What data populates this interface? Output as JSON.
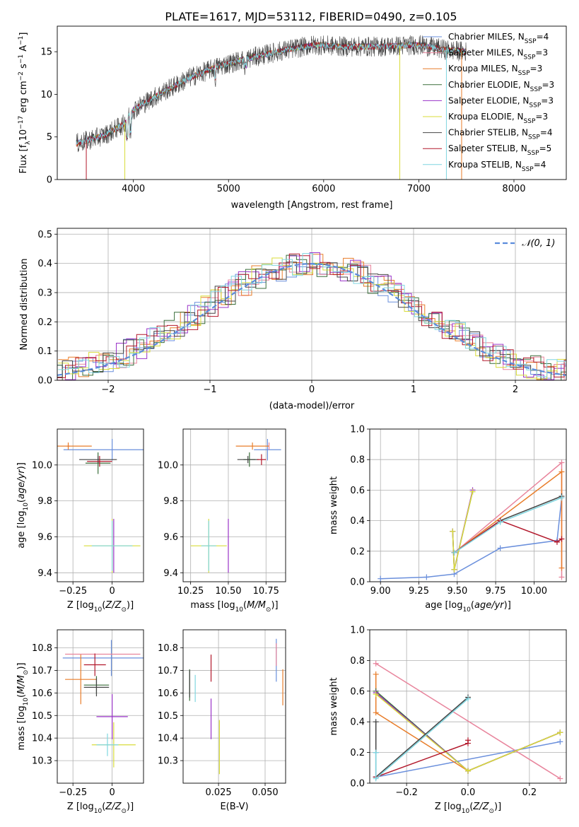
{
  "figure": {
    "title": "PLATE=1617, MJD=53112, FIBERID=0490, z=0.105"
  },
  "legend_labels": [
    {
      "main": "Chabrier MILES, N",
      "sub": "SSP",
      "tail": "=4"
    },
    {
      "main": "Salpeter MILES, N",
      "sub": "SSP",
      "tail": "=3"
    },
    {
      "main": "Kroupa MILES, N",
      "sub": "SSP",
      "tail": "=3"
    },
    {
      "main": "Chabrier ELODIE, N",
      "sub": "SSP",
      "tail": "=3"
    },
    {
      "main": "Salpeter ELODIE, N",
      "sub": "SSP",
      "tail": "=3"
    },
    {
      "main": "Kroupa ELODIE, N",
      "sub": "SSP",
      "tail": "=3"
    },
    {
      "main": "Chabrier STELIB, N",
      "sub": "SSP",
      "tail": "=4"
    },
    {
      "main": "Salpeter STELIB, N",
      "sub": "SSP",
      "tail": "=5"
    },
    {
      "main": "Kroupa STELIB, N",
      "sub": "SSP",
      "tail": "=4"
    }
  ],
  "colors": {
    "Chabrier MILES": "#6a8fdc",
    "Salpeter MILES": "#e8849c",
    "Kroupa MILES": "#e87d2a",
    "Chabrier ELODIE": "#3a6e3a",
    "Salpeter ELODIE": "#9a33c8",
    "Kroupa ELODIE": "#d8dc3a",
    "Chabrier STELIB": "#444444",
    "Salpeter STELIB": "#b2182b",
    "Kroupa STELIB": "#7fd6e0",
    "gaussian": "#5b8cdc"
  },
  "chart_data": [
    {
      "id": "spectrum",
      "type": "line",
      "xlabel": "wavelength [Angstrom, rest frame]",
      "ylabel": "Flux [f_λ 10^-17 erg cm^-2 s^-1 A^-1]",
      "xlim": [
        3200,
        8550
      ],
      "ylim": [
        0,
        18
      ],
      "xticks": [
        4000,
        5000,
        6000,
        7000,
        8000
      ],
      "yticks": [
        0,
        5,
        10,
        15
      ],
      "continuum_points": [
        [
          3400,
          4.2
        ],
        [
          3700,
          5.2
        ],
        [
          3900,
          6.5
        ],
        [
          4000,
          8.2
        ],
        [
          4300,
          10.2
        ],
        [
          4600,
          12.0
        ],
        [
          4900,
          13.3
        ],
        [
          5200,
          14.2
        ],
        [
          5600,
          15.2
        ],
        [
          5900,
          15.8
        ],
        [
          6200,
          15.6
        ],
        [
          6600,
          15.6
        ],
        [
          7000,
          15.8
        ],
        [
          7300,
          15.2
        ],
        [
          7500,
          15.0
        ]
      ],
      "grid": false
    },
    {
      "id": "residual-histogram",
      "type": "histogram",
      "xlabel": "(data-model)/error",
      "ylabel": "Normed distribution",
      "xlim": [
        -2.5,
        2.5
      ],
      "ylim": [
        0,
        0.52
      ],
      "xticks": [
        -2,
        -1,
        0,
        1,
        2
      ],
      "yticks": [
        0.0,
        0.1,
        0.2,
        0.3,
        0.4,
        0.5
      ],
      "bin_width": 0.1,
      "gaussian_legend": "𝒩(0, 1)",
      "grid": true
    },
    {
      "id": "age-vs-Z",
      "type": "scatter",
      "xlabel": "Z [log10(Z/Z⊙)]",
      "ylabel": "age [log10(age/yr)]",
      "xlim": [
        -0.35,
        0.2
      ],
      "ylim": [
        9.35,
        10.2
      ],
      "xticks": [
        -0.25,
        0.0
      ],
      "yticks": [
        9.4,
        9.6,
        9.8,
        10.0
      ],
      "points": [
        {
          "series": "Chabrier MILES",
          "x": 0.0,
          "y": 10.085,
          "xerr": 0.31,
          "yerr": 0.06
        },
        {
          "series": "Salpeter MILES",
          "x": -0.28,
          "y": 10.105,
          "xerr": 0.01,
          "yerr": 0.01
        },
        {
          "series": "Kroupa MILES",
          "x": -0.28,
          "y": 10.105,
          "xerr": 0.15,
          "yerr": 0.02
        },
        {
          "series": "Chabrier ELODIE",
          "x": -0.09,
          "y": 10.01,
          "xerr": 0.08,
          "yerr": 0.06
        },
        {
          "series": "Salpeter ELODIE",
          "x": 0.01,
          "y": 9.55,
          "xerr": 0.0,
          "yerr": 0.15
        },
        {
          "series": "Kroupa ELODIE",
          "x": 0.0,
          "y": 9.55,
          "xerr": 0.18,
          "yerr": 0.15
        },
        {
          "series": "Chabrier STELIB",
          "x": -0.09,
          "y": 10.03,
          "xerr": 0.12,
          "yerr": 0.02
        },
        {
          "series": "Salpeter STELIB",
          "x": -0.08,
          "y": 10.02,
          "xerr": 0.08,
          "yerr": 0.03
        },
        {
          "series": "Kroupa STELIB",
          "x": 0.0,
          "y": 9.55,
          "xerr": 0.13,
          "yerr": 0.14
        }
      ],
      "grid": true
    },
    {
      "id": "age-vs-mass",
      "type": "scatter",
      "xlabel": "mass [log10(M/M⊙)]",
      "ylabel": "",
      "xlim": [
        10.2,
        10.88
      ],
      "ylim": [
        9.35,
        10.2
      ],
      "xticks": [
        10.25,
        10.5,
        10.75
      ],
      "yticks": [
        9.4,
        9.6,
        9.8,
        10.0
      ],
      "points": [
        {
          "series": "Chabrier MILES",
          "x": 10.76,
          "y": 10.085,
          "xerr": 0.09,
          "yerr": 0.06
        },
        {
          "series": "Salpeter MILES",
          "x": 10.77,
          "y": 10.105,
          "xerr": 0.0,
          "yerr": 0.02
        },
        {
          "series": "Kroupa MILES",
          "x": 10.66,
          "y": 10.105,
          "xerr": 0.11,
          "yerr": 0.02
        },
        {
          "series": "Chabrier ELODIE",
          "x": 10.64,
          "y": 10.03,
          "xerr": 0.04,
          "yerr": 0.04
        },
        {
          "series": "Salpeter ELODIE",
          "x": 10.5,
          "y": 9.55,
          "xerr": 0.0,
          "yerr": 0.15
        },
        {
          "series": "Kroupa ELODIE",
          "x": 10.37,
          "y": 9.55,
          "xerr": 0.12,
          "yerr": 0.15
        },
        {
          "series": "Chabrier STELIB",
          "x": 10.63,
          "y": 10.03,
          "xerr": 0.07,
          "yerr": 0.02
        },
        {
          "series": "Salpeter STELIB",
          "x": 10.72,
          "y": 10.03,
          "xerr": 0.03,
          "yerr": 0.03
        },
        {
          "series": "Kroupa STELIB",
          "x": 10.37,
          "y": 9.55,
          "xerr": 0.05,
          "yerr": 0.14
        }
      ],
      "grid": true
    },
    {
      "id": "massweight-vs-age",
      "type": "line",
      "xlabel": "age [log10(age/yr)]",
      "ylabel": "mass weight",
      "xlim": [
        8.93,
        10.21
      ],
      "ylim": [
        0,
        1.0
      ],
      "xticks": [
        9.0,
        9.25,
        9.5,
        9.75,
        10.0
      ],
      "yticks": [
        0.0,
        0.2,
        0.4,
        0.6,
        0.8,
        1.0
      ],
      "series": [
        {
          "name": "Chabrier MILES",
          "x": [
            9.0,
            9.3,
            9.48,
            9.78,
            10.15,
            10.18
          ],
          "y": [
            0.02,
            0.03,
            0.05,
            0.22,
            0.27,
            0.55
          ]
        },
        {
          "name": "Salpeter MILES",
          "x": [
            9.48,
            10.18,
            10.18
          ],
          "y": [
            0.19,
            0.78,
            0.03
          ]
        },
        {
          "name": "Kroupa MILES",
          "x": [
            9.48,
            10.18,
            10.18
          ],
          "y": [
            0.19,
            0.72,
            0.09
          ]
        },
        {
          "name": "Chabrier ELODIE",
          "x": [
            9.47,
            9.48,
            9.6
          ],
          "y": [
            0.33,
            0.08,
            0.59
          ]
        },
        {
          "name": "Salpeter ELODIE",
          "x": [
            9.47,
            9.48,
            9.6
          ],
          "y": [
            0.33,
            0.08,
            0.6
          ]
        },
        {
          "name": "Kroupa ELODIE",
          "x": [
            9.47,
            9.48,
            9.6
          ],
          "y": [
            0.33,
            0.08,
            0.59
          ]
        },
        {
          "name": "Chabrier STELIB",
          "x": [
            9.48,
            9.78,
            10.18
          ],
          "y": [
            0.19,
            0.4,
            0.56
          ]
        },
        {
          "name": "Salpeter STELIB",
          "x": [
            9.48,
            9.78,
            10.15,
            10.18
          ],
          "y": [
            0.19,
            0.4,
            0.26,
            0.28
          ]
        },
        {
          "name": "Kroupa STELIB",
          "x": [
            9.48,
            9.78,
            10.18
          ],
          "y": [
            0.19,
            0.39,
            0.55
          ]
        }
      ],
      "grid": true
    },
    {
      "id": "mass-vs-Z",
      "type": "scatter",
      "xlabel": "Z [log10(Z/Z⊙)]",
      "ylabel": "mass [log10(M/M⊙)]",
      "xlim": [
        -0.35,
        0.2
      ],
      "ylim": [
        10.2,
        10.88
      ],
      "xticks": [
        -0.25,
        0.0
      ],
      "yticks": [
        10.3,
        10.4,
        10.5,
        10.6,
        10.7,
        10.8
      ],
      "points": [
        {
          "series": "Chabrier MILES",
          "x": -0.005,
          "y": 10.755,
          "xerr": 0.31,
          "yerr": 0.08
        },
        {
          "series": "Salpeter MILES",
          "x": -0.06,
          "y": 10.772,
          "xerr": 0.24,
          "yerr": 0.0
        },
        {
          "series": "Kroupa MILES",
          "x": -0.2,
          "y": 10.66,
          "xerr": 0.1,
          "yerr": 0.11
        },
        {
          "series": "Chabrier ELODIE",
          "x": -0.1,
          "y": 10.635,
          "xerr": 0.08,
          "yerr": 0.04
        },
        {
          "series": "Salpeter ELODIE",
          "x": 0.0,
          "y": 10.495,
          "xerr": 0.1,
          "yerr": 0.1
        },
        {
          "series": "Kroupa ELODIE",
          "x": 0.01,
          "y": 10.37,
          "xerr": 0.14,
          "yerr": 0.1
        },
        {
          "series": "Chabrier STELIB",
          "x": -0.1,
          "y": 10.625,
          "xerr": 0.08,
          "yerr": 0.04
        },
        {
          "series": "Salpeter STELIB",
          "x": -0.11,
          "y": 10.725,
          "xerr": 0.07,
          "yerr": 0.05
        },
        {
          "series": "Kroupa STELIB",
          "x": -0.03,
          "y": 10.37,
          "xerr": 0.07,
          "yerr": 0.05
        }
      ],
      "grid": true
    },
    {
      "id": "mass-vs-EBV",
      "type": "scatter",
      "xlabel": "E(B-V)",
      "ylabel": "",
      "xlim": [
        0.006,
        0.061
      ],
      "ylim": [
        10.2,
        10.88
      ],
      "xticks": [
        0.025,
        0.05
      ],
      "yticks": [
        10.3,
        10.4,
        10.5,
        10.6,
        10.7,
        10.8
      ],
      "points": [
        {
          "series": "Chabrier MILES",
          "x": 0.056,
          "y": 10.745,
          "xerr": 0.0,
          "yerr": 0.095
        },
        {
          "series": "Salpeter MILES",
          "x": 0.056,
          "y": 10.77,
          "xerr": 0.0,
          "yerr": 0.05
        },
        {
          "series": "Kroupa MILES",
          "x": 0.0595,
          "y": 10.625,
          "xerr": 0.0,
          "yerr": 0.08
        },
        {
          "series": "Chabrier ELODIE",
          "x": 0.0095,
          "y": 10.635,
          "xerr": 0.0,
          "yerr": 0.07
        },
        {
          "series": "Salpeter ELODIE",
          "x": 0.021,
          "y": 10.485,
          "xerr": 0.0,
          "yerr": 0.09
        },
        {
          "series": "Kroupa ELODIE",
          "x": 0.0255,
          "y": 10.36,
          "xerr": 0.0,
          "yerr": 0.12
        },
        {
          "series": "Chabrier STELIB",
          "x": 0.0095,
          "y": 10.64,
          "xerr": 0.0,
          "yerr": 0.06
        },
        {
          "series": "Salpeter STELIB",
          "x": 0.021,
          "y": 10.71,
          "xerr": 0.0,
          "yerr": 0.06
        },
        {
          "series": "Kroupa STELIB",
          "x": 0.0125,
          "y": 10.62,
          "xerr": 0.0,
          "yerr": 0.06
        }
      ],
      "grid": true
    },
    {
      "id": "massweight-vs-Z",
      "type": "line",
      "xlabel": "Z [log10(Z/Z⊙)]",
      "ylabel": "mass weight",
      "xlim": [
        -0.32,
        0.32
      ],
      "ylim": [
        0,
        1.0
      ],
      "xticks": [
        -0.2,
        0.0,
        0.2
      ],
      "yticks": [
        0.0,
        0.2,
        0.4,
        0.6,
        0.8,
        1.0
      ],
      "series": [
        {
          "name": "Chabrier MILES",
          "x": [
            -0.3,
            -0.3,
            0.3
          ],
          "y": [
            0.2,
            0.04,
            0.27
          ]
        },
        {
          "name": "Salpeter MILES",
          "x": [
            -0.3,
            0.3
          ],
          "y": [
            0.78,
            0.03
          ]
        },
        {
          "name": "Kroupa MILES",
          "x": [
            -0.3,
            -0.3,
            0.0,
            0.3
          ],
          "y": [
            0.71,
            0.46,
            0.08,
            0.33
          ]
        },
        {
          "name": "Chabrier ELODIE",
          "x": [
            -0.3,
            0.0,
            0.3
          ],
          "y": [
            0.6,
            0.08,
            0.33
          ]
        },
        {
          "name": "Salpeter ELODIE",
          "x": [
            -0.3,
            0.0,
            0.3
          ],
          "y": [
            0.59,
            0.08,
            0.33
          ]
        },
        {
          "name": "Kroupa ELODIE",
          "x": [
            -0.3,
            0.0,
            0.3
          ],
          "y": [
            0.58,
            0.08,
            0.33
          ]
        },
        {
          "name": "Chabrier STELIB",
          "x": [
            -0.3,
            -0.3,
            0.0
          ],
          "y": [
            0.4,
            0.04,
            0.56
          ]
        },
        {
          "name": "Salpeter STELIB",
          "x": [
            -0.3,
            0.0,
            0.0
          ],
          "y": [
            0.04,
            0.26,
            0.28
          ]
        },
        {
          "name": "Kroupa STELIB",
          "x": [
            -0.3,
            -0.3,
            0.0
          ],
          "y": [
            0.2,
            0.03,
            0.55
          ]
        }
      ],
      "grid": true
    }
  ]
}
